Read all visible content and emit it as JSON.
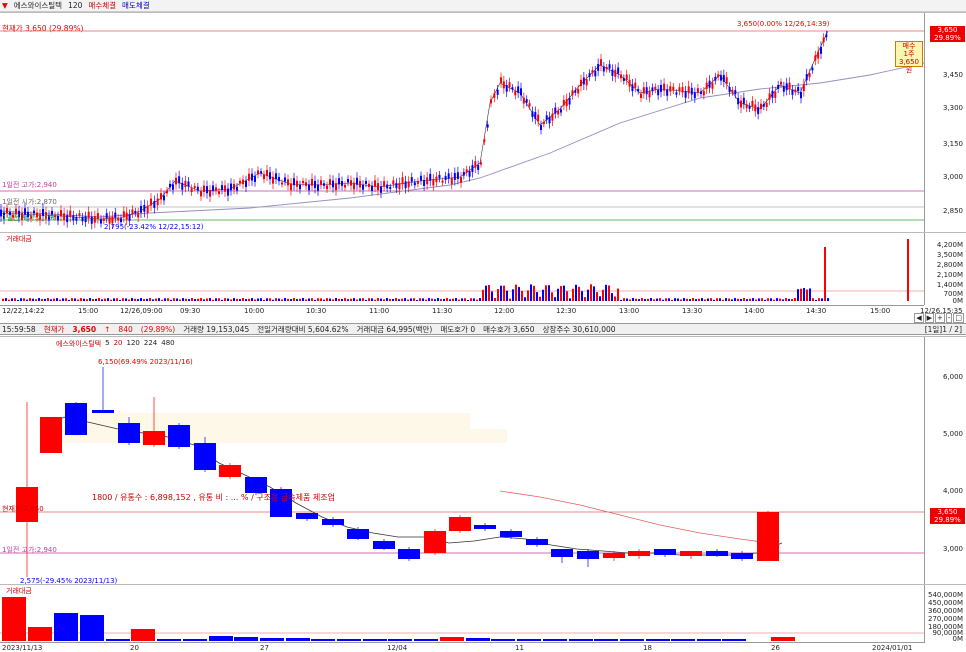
{
  "top": {
    "name": "에스와이스틸텍",
    "period": "120",
    "buy_tag": "매수체결",
    "sell_tag": "매도체결",
    "current_label": "현재가 3,650 (29.89%)"
  },
  "intraday": {
    "yticks": [
      "3,600",
      "3,450",
      "3,300",
      "3,150",
      "3,000",
      "2,850"
    ],
    "price_box": {
      "value": "3,650",
      "pct": "29.89%"
    },
    "hi_note": "3,650(0.00% 12/26,14:39)",
    "lo_note": "2,795(-23.42% 12/22,15:12)",
    "ref_lines": [
      "1일전 고가:2,940",
      "1일전 시가:2,870",
      "1일전 저가:2,750"
    ],
    "buy_marker": [
      "매수",
      "1주",
      "3,650원"
    ],
    "vol_label": "거래대금",
    "vol_ticks": [
      "4,200M",
      "3,500M",
      "2,800M",
      "2,100M",
      "1,400M",
      "700M",
      "0M"
    ],
    "xlabels": [
      "12/22,14:22",
      "15:00",
      "12/26,09:00",
      "09:30",
      "10:00",
      "10:30",
      "11:00",
      "11:30",
      "12:00",
      "12:30",
      "13:00",
      "13:30",
      "14:00",
      "14:30",
      "15:00",
      "12/26,15:35"
    ],
    "scroll": [
      "◀",
      "▶",
      "+",
      "-",
      "□"
    ]
  },
  "info": {
    "time": "15:59:58",
    "label_price": "현재가",
    "price": "3,650",
    "arrow": "↑",
    "change": "840",
    "pct": "(29.89%)",
    "volume": "거래량 19,153,045",
    "prev_ratio": "전일거래량대비 5,604.62%",
    "amount": "거래대금 64,995(백만)",
    "ask": "매도호가 0",
    "bid": "매수호가 3,650",
    "shares": "상장주수 30,610,000",
    "page": "[1일]1 / 2]"
  },
  "daily": {
    "legend": "에스와이스틸텍",
    "ma": [
      "5",
      "20",
      "120",
      "224",
      "480"
    ],
    "hi_note": "6,150(69.49% 2023/11/16)",
    "lo_note": "2,575(-29.45% 2023/11/13)",
    "yticks": [
      "5,000",
      "5,000",
      "4,000",
      "3,000"
    ],
    "yticks_main": [
      "6,000",
      "5,000",
      "4,000",
      "3,000"
    ],
    "price_box": {
      "value": "3,650",
      "pct": "29.89%"
    },
    "center_text": "1800 / 유통수 : 6,898,152 , 유통 비 : ... % / 구조용 금속제품 제조업",
    "cur_line": "현재가:3,650",
    "prev_high": "1일전 고가:2,940",
    "vol_label": "거래대금",
    "vol_ticks": [
      "540,000M",
      "450,000M",
      "360,000M",
      "270,000M",
      "180,000M",
      "90,000M",
      "0M"
    ],
    "xlabels": [
      "2023/11/13",
      "20",
      "27",
      "12/04",
      "11",
      "18",
      "26",
      "2024/01/01"
    ]
  },
  "colors": {
    "up": "#ff0000",
    "down": "#0000ff",
    "ma": "#9090c0",
    "ref": "#c040a0"
  }
}
